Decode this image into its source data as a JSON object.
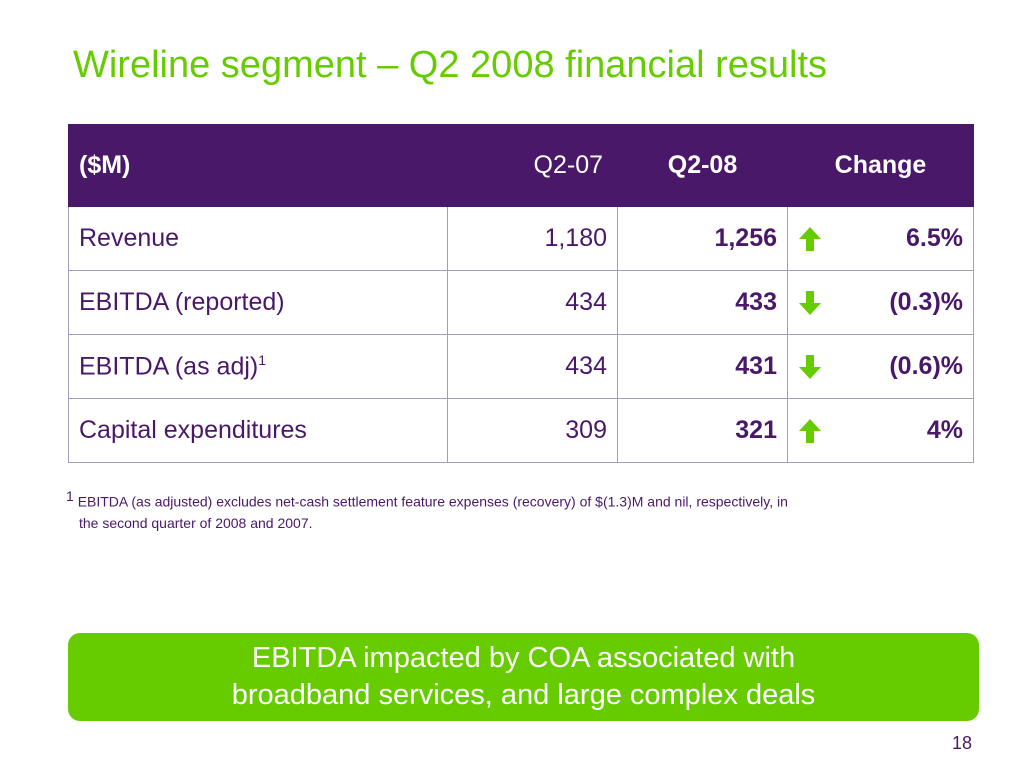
{
  "title": "Wireline segment – Q2 2008 financial results",
  "table": {
    "headers": [
      "($M)",
      "Q2-07",
      "Q2-08",
      "Change"
    ],
    "rows": [
      {
        "label": "Revenue",
        "sup": "",
        "prev": "1,180",
        "cur": "1,256",
        "direction": "up",
        "change": "6.5%"
      },
      {
        "label": "EBITDA (reported)",
        "sup": "",
        "prev": "434",
        "cur": "433",
        "direction": "down",
        "change": "(0.3)%"
      },
      {
        "label": "EBITDA (as adj)",
        "sup": "1",
        "prev": "434",
        "cur": "431",
        "direction": "down",
        "change": "(0.6)%"
      },
      {
        "label": "Capital expenditures",
        "sup": "",
        "prev": "309",
        "cur": "321",
        "direction": "up",
        "change": "4%"
      }
    ]
  },
  "footnote": {
    "marker": "1",
    "line1": "EBITDA (as adjusted) excludes net-cash settlement feature expenses (recovery) of $(1.3)M and nil, respectively, in",
    "line2": "the second quarter of 2008 and 2007."
  },
  "callout": {
    "line1": "EBITDA impacted by COA associated with",
    "line2": "broadband services, and large complex deals"
  },
  "page_number": "18",
  "colors": {
    "title_green": "#66cc00",
    "header_purple": "#4a1868",
    "arrow_green": "#66cc00"
  },
  "icons": {
    "up": "arrow-up-icon",
    "down": "arrow-down-icon"
  }
}
